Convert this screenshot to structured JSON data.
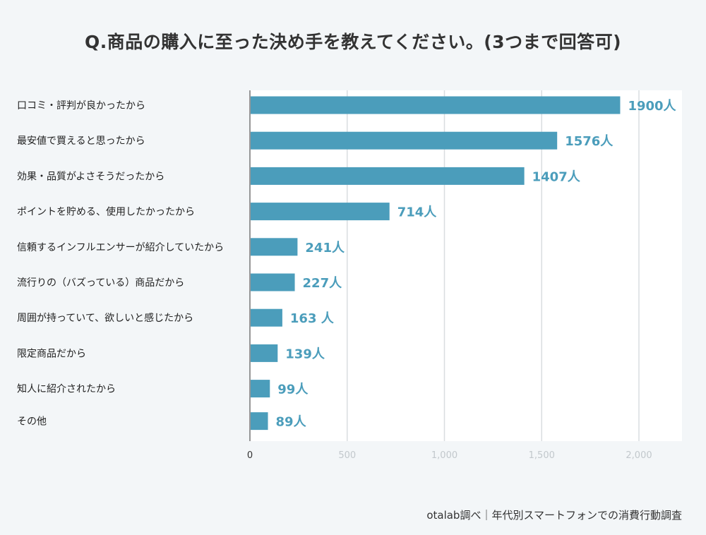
{
  "title": "Q.商品の購入に至った決め手を教えてください。(3つまで回答可)",
  "source": "otalab調べ｜年代別スマートフォンでの消費行動調査",
  "colors": {
    "bar": "#4b9dbb",
    "value_label": "#4b9dbb",
    "grid": "#d9dde0",
    "axis": "#333333"
  },
  "chart_data": {
    "type": "bar",
    "orientation": "horizontal",
    "title": "Q.商品の購入に至った決め手を教えてください。(3つまで回答可)",
    "xlabel": "",
    "ylabel": "",
    "xlim": [
      0,
      2200
    ],
    "grid": true,
    "categories": [
      "口コミ・評判が良かったから",
      "最安値で買えると思ったから",
      "効果・品質がよさそうだったから",
      "ポイントを貯める、使用したかったから",
      "信頼するインフルエンサーが紹介していたから",
      "流行りの（バズっている）商品だから",
      "周囲が持っていて、欲しいと感じたから",
      "限定商品だから",
      "知人に紹介されたから",
      "その他"
    ],
    "values": [
      1900,
      1576,
      1407,
      714,
      241,
      227,
      163,
      139,
      99,
      89
    ],
    "value_labels": [
      "1900人",
      "1576人",
      "1407人",
      "714人",
      "241人",
      "227人",
      "163 人",
      "139人",
      "99人",
      "89人"
    ],
    "ticks": [
      0,
      500,
      1000,
      1500,
      2000
    ],
    "tick_labels": [
      "0",
      "500",
      "1,000",
      "1,500",
      "2,000"
    ]
  }
}
